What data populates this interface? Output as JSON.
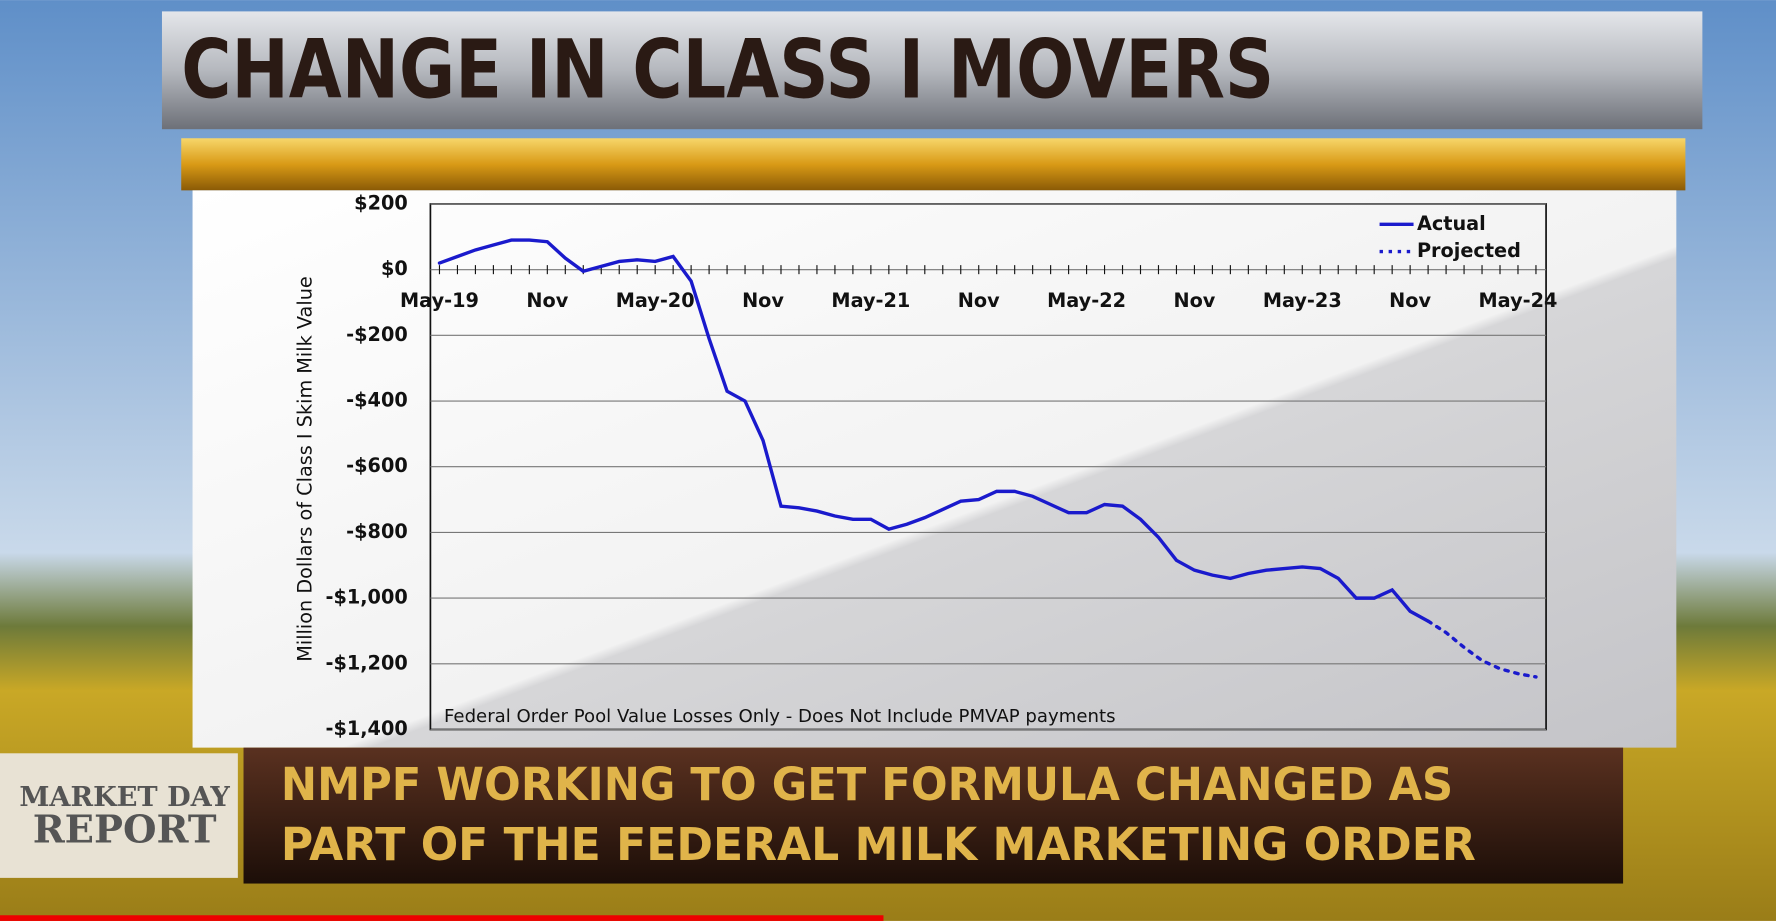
{
  "headline": "CHANGE IN CLASS I MOVERS",
  "logo": [
    "MARKET DAY",
    "REPORT"
  ],
  "ticker": [
    "NMPF WORKING TO GET FORMULA CHANGED AS",
    "PART OF THE FEDERAL MILK MARKETING ORDER"
  ],
  "chart_data": {
    "type": "line",
    "y_label": "Million Dollars of Class I Skim Milk Value",
    "annotation": "Federal Order Pool Value Losses Only - Does Not Include PMVAP payments",
    "categories": [
      "May-19",
      null,
      null,
      null,
      null,
      null,
      "Nov",
      null,
      null,
      null,
      null,
      null,
      "May-20",
      null,
      null,
      null,
      null,
      null,
      "Nov",
      null,
      null,
      null,
      null,
      null,
      "May-21",
      null,
      null,
      null,
      null,
      null,
      "Nov",
      null,
      null,
      null,
      null,
      null,
      "May-22",
      null,
      null,
      null,
      null,
      null,
      "Nov",
      null,
      null,
      null,
      null,
      null,
      "May-23",
      null,
      null,
      null,
      null,
      null,
      "Nov",
      null,
      null,
      null,
      null,
      null,
      "May-24",
      null
    ],
    "series": [
      {
        "name": "Actual",
        "color": "#1a1acc",
        "style": "solid",
        "values": [
          20,
          40,
          60,
          75,
          90,
          90,
          85,
          35,
          -5,
          10,
          25,
          30,
          25,
          40,
          -35,
          -210,
          -370,
          -400,
          -520,
          -720,
          -725,
          -735,
          -750,
          -760,
          -760,
          -790,
          -775,
          -755,
          -730,
          -705,
          -700,
          -675,
          -675,
          -690,
          -715,
          -740,
          -740,
          -715,
          -720,
          -760,
          -815,
          -885,
          -915,
          -930,
          -940,
          -925,
          -915,
          -910,
          -905,
          -910,
          -940,
          -1000,
          -1000,
          -975,
          -1040,
          -1070,
          null,
          null,
          null,
          null,
          null,
          null
        ]
      },
      {
        "name": "Projected",
        "color": "#1a1acc",
        "style": "dotted",
        "values": [
          null,
          null,
          null,
          null,
          null,
          null,
          null,
          null,
          null,
          null,
          null,
          null,
          null,
          null,
          null,
          null,
          null,
          null,
          null,
          null,
          null,
          null,
          null,
          null,
          null,
          null,
          null,
          null,
          null,
          null,
          null,
          null,
          null,
          null,
          null,
          null,
          null,
          null,
          null,
          null,
          null,
          null,
          null,
          null,
          null,
          null,
          null,
          null,
          null,
          null,
          null,
          null,
          null,
          null,
          null,
          -1070,
          -1105,
          -1150,
          -1190,
          -1215,
          -1230,
          -1240
        ]
      }
    ],
    "ylim": [
      -1400,
      200
    ],
    "yticks": [
      {
        "value": 200,
        "label": "$200"
      },
      {
        "value": 0,
        "label": "$0"
      },
      {
        "value": -200,
        "label": "-$200"
      },
      {
        "value": -400,
        "label": "-$400"
      },
      {
        "value": -600,
        "label": "-$600"
      },
      {
        "value": -800,
        "label": "-$800"
      },
      {
        "value": -1000,
        "label": "-$1,000"
      },
      {
        "value": -1200,
        "label": "-$1,200"
      },
      {
        "value": -1400,
        "label": "-$1,400"
      }
    ],
    "grid": true,
    "legend": "top-right"
  }
}
